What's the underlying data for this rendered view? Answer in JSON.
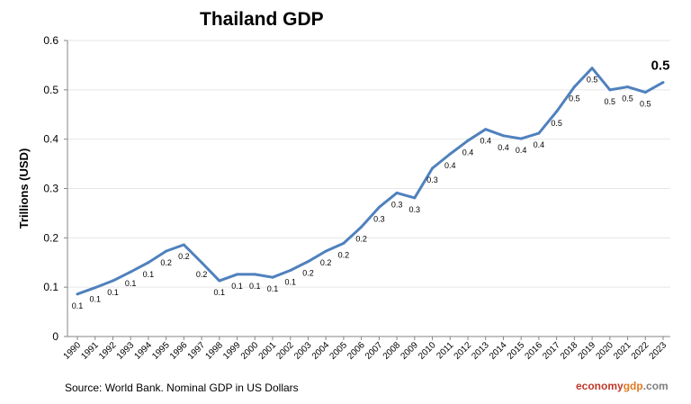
{
  "chart_data": {
    "type": "line",
    "title": "Thailand GDP",
    "xlabel": "",
    "ylabel": "Trillions (USD)",
    "ylim": [
      0,
      0.6
    ],
    "yticks": [
      "0",
      "0.1",
      "0.2",
      "0.3",
      "0.4",
      "0.5",
      "0.6"
    ],
    "grid": true,
    "series_color": "#4f81bd",
    "categories": [
      "1990",
      "1991",
      "1992",
      "1993",
      "1994",
      "1995",
      "1996",
      "1997",
      "1998",
      "1999",
      "2000",
      "2001",
      "2002",
      "2003",
      "2004",
      "2005",
      "2006",
      "2007",
      "2008",
      "2009",
      "2010",
      "2011",
      "2012",
      "2013",
      "2014",
      "2015",
      "2016",
      "2017",
      "2018",
      "2019",
      "2020",
      "2021",
      "2022",
      "2023"
    ],
    "values": [
      0.086,
      0.099,
      0.113,
      0.131,
      0.15,
      0.173,
      0.186,
      0.15,
      0.113,
      0.126,
      0.126,
      0.12,
      0.134,
      0.152,
      0.173,
      0.189,
      0.222,
      0.262,
      0.291,
      0.281,
      0.341,
      0.37,
      0.397,
      0.42,
      0.407,
      0.401,
      0.412,
      0.456,
      0.506,
      0.544,
      0.5,
      0.506,
      0.495,
      0.515
    ],
    "data_labels": [
      "0.1",
      "0.1",
      "0.1",
      "0.1",
      "0.1",
      "0.2",
      "0.2",
      "0.2",
      "0.1",
      "0.1",
      "0.1",
      "0.1",
      "0.1",
      "0.2",
      "0.2",
      "0.2",
      "0.2",
      "0.3",
      "0.3",
      "0.3",
      "0.3",
      "0.4",
      "0.4",
      "0.4",
      "0.4",
      "0.4",
      "0.4",
      "0.5",
      "0.5",
      "0.5",
      "0.5",
      "0.5",
      "0.5",
      "0.5"
    ]
  },
  "footer": {
    "source": "Source: World Bank.  Nominal GDP  in US Dollars",
    "brand_part1": "economy",
    "brand_part2": "gdp",
    "brand_part3": ".com"
  }
}
